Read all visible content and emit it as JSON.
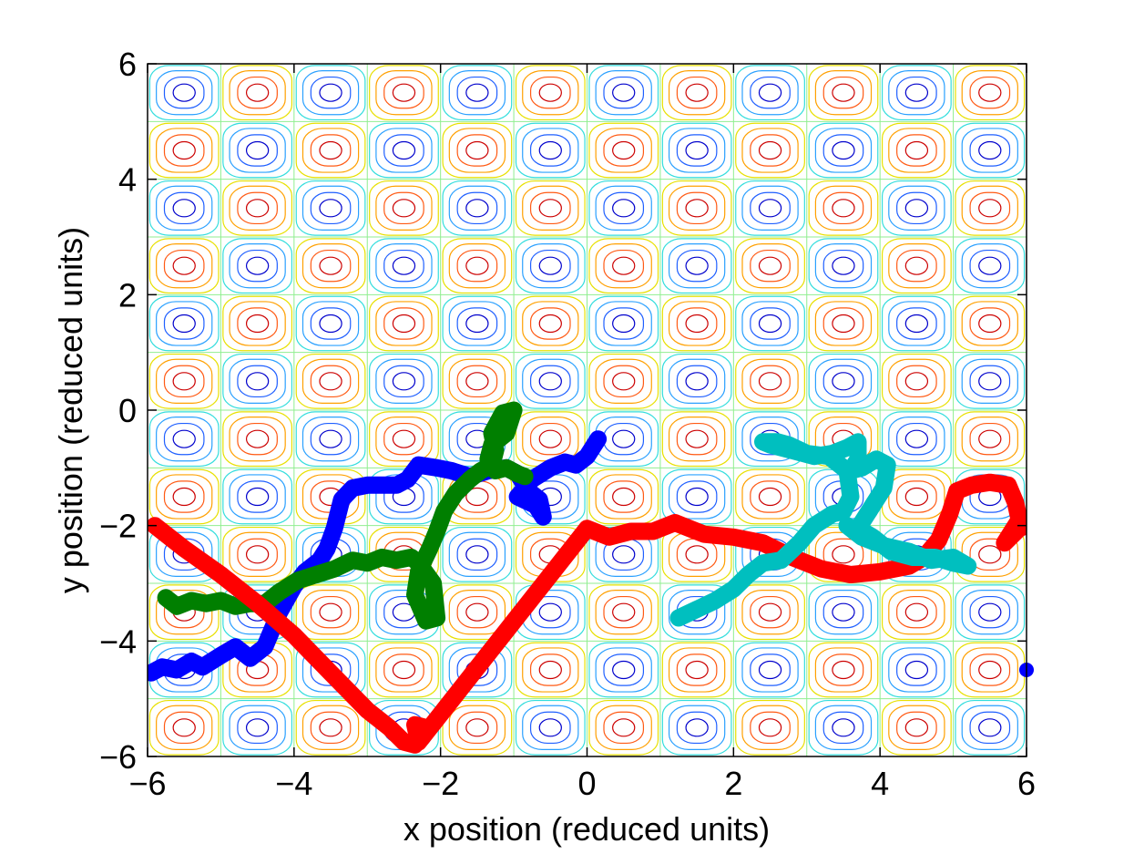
{
  "chart_data": {
    "type": "line",
    "title": "",
    "xlabel": "x position (reduced units)",
    "ylabel": "y position (reduced units)",
    "xlim": [
      -6,
      6
    ],
    "ylim": [
      -6,
      6
    ],
    "xticks": [
      -6,
      -4,
      -2,
      0,
      2,
      4,
      6
    ],
    "yticks": [
      -6,
      -4,
      -2,
      0,
      2,
      4,
      6
    ],
    "xtick_labels": [
      "−6",
      "−4",
      "−2",
      "0",
      "2",
      "4",
      "6"
    ],
    "ytick_labels": [
      "−6",
      "−4",
      "−2",
      "0",
      "2",
      "4",
      "6"
    ],
    "grid": false,
    "background": {
      "type": "contour",
      "cells_x": 12,
      "cells_y": 12,
      "levels_negative": [
        "#0000cc",
        "#1f5fff",
        "#2aa0ff",
        "#33dddd"
      ],
      "levels_positive": [
        "#cc0000",
        "#ff5a14",
        "#ffa000",
        "#e8e000"
      ],
      "level_zero": "#90ee90"
    },
    "series": [
      {
        "color": "#0000ff",
        "x": [
          -5.95,
          -5.8,
          -5.6,
          -5.4,
          -5.25,
          -5.0,
          -4.8,
          -4.6,
          -4.4,
          -4.2,
          -4.0,
          -3.85,
          -3.65,
          -3.55,
          -3.45,
          -3.35,
          -3.2,
          -3.0,
          -2.8,
          -2.6,
          -2.45,
          -2.3,
          -2.05,
          -1.85,
          -1.6,
          -1.35,
          -1.1,
          -0.95,
          -0.8,
          -0.65,
          -0.6,
          -0.7,
          -0.95,
          -0.75,
          -0.5,
          -0.3,
          -0.15,
          0.0,
          0.15
        ],
        "y": [
          -4.55,
          -4.45,
          -4.5,
          -4.35,
          -4.45,
          -4.25,
          -4.1,
          -4.3,
          -4.1,
          -3.5,
          -3.05,
          -2.8,
          -2.6,
          -2.4,
          -2.05,
          -1.55,
          -1.35,
          -1.3,
          -1.3,
          -1.3,
          -1.2,
          -0.95,
          -1.0,
          -1.05,
          -1.15,
          -1.05,
          -1.0,
          -1.1,
          -1.4,
          -1.55,
          -1.85,
          -1.65,
          -1.5,
          -1.2,
          -1.0,
          -0.9,
          -0.95,
          -0.8,
          -0.5
        ]
      },
      {
        "color": "#007f00",
        "x": [
          -5.75,
          -5.6,
          -5.4,
          -5.2,
          -5.0,
          -4.8,
          -4.6,
          -4.4,
          -4.2,
          -3.95,
          -3.7,
          -3.45,
          -3.2,
          -3.0,
          -2.8,
          -2.6,
          -2.4,
          -2.3,
          -2.1,
          -2.05,
          -2.2,
          -2.35,
          -2.3,
          -2.15,
          -2.05,
          -1.95,
          -1.8,
          -1.6,
          -1.45,
          -1.3,
          -1.25,
          -1.3,
          -1.15,
          -1.0,
          -1.1,
          -1.3,
          -1.35,
          -1.25,
          -1.1,
          -0.95,
          -0.85
        ],
        "y": [
          -3.25,
          -3.4,
          -3.3,
          -3.35,
          -3.3,
          -3.4,
          -3.35,
          -3.35,
          -3.15,
          -2.95,
          -2.85,
          -2.75,
          -2.6,
          -2.65,
          -2.55,
          -2.6,
          -2.55,
          -2.65,
          -3.0,
          -3.6,
          -3.65,
          -3.2,
          -2.8,
          -2.4,
          -2.1,
          -1.75,
          -1.45,
          -1.2,
          -1.05,
          -0.95,
          -0.7,
          -0.4,
          -0.05,
          0.0,
          -0.4,
          -0.6,
          -0.85,
          -1.05,
          -1.0,
          -1.1,
          -1.15
        ]
      },
      {
        "color": "#ff0000",
        "x": [
          -5.9,
          -5.5,
          -5.0,
          -4.5,
          -4.0,
          -3.5,
          -3.0,
          -2.7,
          -2.5,
          -2.35,
          -2.25,
          -2.2,
          -2.35,
          -2.3,
          0.0,
          0.3,
          0.6,
          0.9,
          1.2,
          1.6,
          2.0,
          2.4,
          2.8,
          3.2,
          3.6,
          4.0,
          4.4,
          4.6,
          4.8,
          4.95,
          5.05,
          5.25,
          5.5,
          5.75,
          5.85,
          5.9,
          5.7,
          5.9,
          6.0
        ],
        "y": [
          -2.0,
          -2.4,
          -2.85,
          -3.35,
          -3.9,
          -4.55,
          -5.2,
          -5.5,
          -5.75,
          -5.8,
          -5.65,
          -5.5,
          -5.45,
          -5.75,
          -2.05,
          -2.2,
          -2.1,
          -2.1,
          -1.95,
          -2.15,
          -2.2,
          -2.3,
          -2.55,
          -2.75,
          -2.85,
          -2.8,
          -2.7,
          -2.55,
          -2.25,
          -1.8,
          -1.4,
          -1.3,
          -1.25,
          -1.3,
          -1.6,
          -1.9,
          -2.3,
          -2.05,
          -2.0
        ]
      },
      {
        "color": "#00bfbf",
        "x": [
          1.25,
          1.5,
          1.75,
          2.0,
          2.2,
          2.4,
          2.65,
          2.9,
          3.1,
          3.35,
          3.5,
          3.6,
          3.55,
          3.3,
          3.0,
          2.75,
          2.6,
          2.4,
          2.5,
          2.8,
          3.1,
          3.35,
          3.55,
          3.7,
          3.7,
          3.6,
          3.75,
          3.95,
          4.1,
          4.05,
          3.85,
          3.7,
          3.9,
          4.15,
          4.45,
          4.75,
          5.0,
          5.2,
          5.0,
          4.7,
          4.4,
          4.05,
          3.75,
          3.55
        ],
        "y": [
          -3.6,
          -3.45,
          -3.3,
          -3.1,
          -2.85,
          -2.65,
          -2.6,
          -2.3,
          -2.0,
          -1.8,
          -1.75,
          -1.5,
          -1.05,
          -0.8,
          -0.75,
          -0.6,
          -0.55,
          -0.55,
          -0.6,
          -0.7,
          -0.8,
          -0.75,
          -0.65,
          -0.55,
          -0.85,
          -1.05,
          -1.0,
          -0.85,
          -0.95,
          -1.35,
          -1.75,
          -2.05,
          -2.2,
          -2.45,
          -2.55,
          -2.55,
          -2.65,
          -2.7,
          -2.55,
          -2.6,
          -2.45,
          -2.35,
          -2.2,
          -2.0
        ]
      }
    ],
    "points": [
      {
        "color": "#0000ff",
        "x": 6.0,
        "y": -4.5
      }
    ]
  }
}
